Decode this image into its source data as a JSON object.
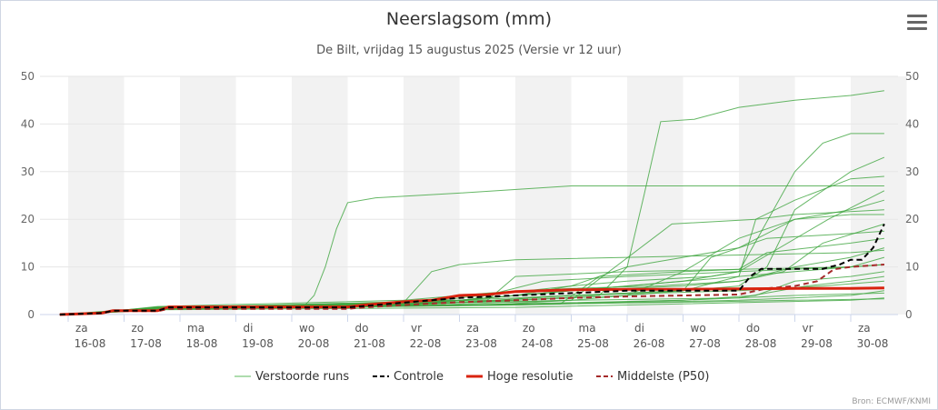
{
  "chart_data": {
    "type": "line",
    "title": "Neerslagsom (mm)",
    "subtitle": "De Bilt, vrijdag 15 augustus 2025 (Versie vr 12 uur)",
    "credit": "Bron: ECMWF/KNMI",
    "ylim": [
      0,
      50
    ],
    "yticks": [
      0,
      10,
      20,
      30,
      40,
      50
    ],
    "grid": true,
    "legend_position": "bottom",
    "x_days": [
      {
        "day": "za",
        "date": "16-08"
      },
      {
        "day": "zo",
        "date": "17-08"
      },
      {
        "day": "ma",
        "date": "18-08"
      },
      {
        "day": "di",
        "date": "19-08"
      },
      {
        "day": "wo",
        "date": "20-08"
      },
      {
        "day": "do",
        "date": "21-08"
      },
      {
        "day": "vr",
        "date": "22-08"
      },
      {
        "day": "za",
        "date": "23-08"
      },
      {
        "day": "zo",
        "date": "24-08"
      },
      {
        "day": "ma",
        "date": "25-08"
      },
      {
        "day": "di",
        "date": "26-08"
      },
      {
        "day": "wo",
        "date": "27-08"
      },
      {
        "day": "do",
        "date": "28-08"
      },
      {
        "day": "vr",
        "date": "29-08"
      },
      {
        "day": "za",
        "date": "30-08"
      }
    ],
    "x_range_days": [
      -0.15,
      14.7
    ],
    "legend": [
      {
        "name": "Verstoorde runs",
        "color": "#5cb85c",
        "style": "solid-thin"
      },
      {
        "name": "Controle",
        "color": "#000000",
        "style": "dashed"
      },
      {
        "name": "Hoge resolutie",
        "color": "#d9230f",
        "style": "solid-thick"
      },
      {
        "name": "Middelste (P50)",
        "color": "#a52a2a",
        "style": "dashed"
      }
    ],
    "ensemble": [
      {
        "x": [
          -0.2,
          0.8,
          1.6,
          4.2,
          4.4,
          4.6,
          4.8,
          5.0,
          5.5,
          7,
          9,
          11,
          14.6
        ],
        "y": [
          0,
          0.8,
          1.5,
          1.5,
          4,
          10,
          18,
          23.5,
          24.5,
          25.5,
          27,
          27,
          27
        ]
      },
      {
        "x": [
          -0.2,
          0.8,
          1.6,
          6,
          7,
          9,
          10,
          10.3,
          10.6,
          11.2,
          12,
          13,
          14,
          14.6
        ],
        "y": [
          0,
          0.7,
          1.6,
          2,
          3.5,
          6,
          10,
          25,
          40.5,
          41,
          43.5,
          45,
          46,
          47
        ]
      },
      {
        "x": [
          -0.2,
          0.8,
          1.6,
          6,
          7,
          9,
          11,
          12,
          13,
          13.5,
          14,
          14.6
        ],
        "y": [
          0,
          0.7,
          1.2,
          1.8,
          3,
          5,
          7,
          9,
          30,
          36,
          38,
          38
        ]
      },
      {
        "x": [
          -0.2,
          0.8,
          1.6,
          6,
          7,
          9,
          11,
          12,
          12.5,
          13,
          14,
          14.6
        ],
        "y": [
          0,
          0.6,
          1.4,
          2.2,
          3,
          4,
          5,
          6,
          10,
          22,
          30,
          33
        ]
      },
      {
        "x": [
          -0.2,
          0.8,
          1.6,
          6,
          8,
          10,
          11,
          12,
          12.3,
          13,
          14,
          14.6
        ],
        "y": [
          0,
          0.6,
          1.3,
          2,
          3,
          4,
          5,
          8,
          20,
          24,
          28.5,
          29
        ]
      },
      {
        "x": [
          -0.2,
          0.8,
          1.6,
          6,
          9,
          10,
          11,
          12,
          13,
          14,
          14.6
        ],
        "y": [
          0,
          0.6,
          1.2,
          1.8,
          3,
          4,
          9,
          16,
          20,
          22,
          24
        ]
      },
      {
        "x": [
          -0.2,
          0.8,
          1.6,
          6,
          6.5,
          7,
          8,
          10,
          12,
          14,
          14.6
        ],
        "y": [
          0,
          0.6,
          1.5,
          2.5,
          9,
          10.5,
          11.5,
          12,
          12.5,
          13,
          13.5
        ]
      },
      {
        "x": [
          -0.2,
          0.8,
          1.6,
          6,
          8,
          9.5,
          10,
          11,
          12,
          12.5,
          14,
          14.6
        ],
        "y": [
          0,
          0.6,
          1.3,
          2,
          3,
          4,
          10,
          12,
          14,
          16,
          17,
          17.5
        ]
      },
      {
        "x": [
          -0.2,
          0.8,
          1.6,
          7,
          9,
          11,
          12,
          12.8,
          13.5,
          14.6
        ],
        "y": [
          0,
          0.6,
          1.4,
          3,
          5,
          6,
          7,
          9,
          15,
          19
        ]
      },
      {
        "x": [
          -0.2,
          0.8,
          1.6,
          7.5,
          8,
          10,
          12,
          14,
          14.6
        ],
        "y": [
          0,
          0.6,
          1.3,
          3,
          8,
          9,
          9.5,
          10,
          10.5
        ]
      },
      {
        "x": [
          -0.2,
          0.8,
          1.6,
          6,
          8,
          9,
          10,
          11.5,
          12,
          14,
          14.6
        ],
        "y": [
          0,
          0.6,
          1.4,
          2,
          4,
          6,
          7,
          8,
          9,
          10,
          12
        ]
      },
      {
        "x": [
          -0.2,
          0.8,
          1.6,
          6,
          9,
          11,
          12.3,
          13,
          14,
          14.6
        ],
        "y": [
          0,
          0.6,
          1.2,
          1.8,
          2.5,
          3,
          4,
          7,
          8,
          9
        ]
      },
      {
        "x": [
          -0.2,
          0.8,
          1.6,
          7,
          9,
          12,
          13.2,
          14,
          14.6
        ],
        "y": [
          0,
          0.6,
          1.3,
          2.5,
          3,
          3.5,
          6,
          7,
          8
        ]
      },
      {
        "x": [
          -0.2,
          0.8,
          1.6,
          8,
          10,
          12,
          14,
          14.6
        ],
        "y": [
          0,
          0.5,
          1.1,
          2,
          2.5,
          3,
          4,
          5
        ]
      },
      {
        "x": [
          -0.2,
          0.8,
          1.6,
          8,
          10,
          12,
          14,
          14.6
        ],
        "y": [
          0,
          0.5,
          1.0,
          1.5,
          2,
          2.5,
          3,
          3.5
        ]
      },
      {
        "x": [
          -0.2,
          0.8,
          1.6,
          6,
          7.5,
          9,
          10.5,
          12,
          13,
          14,
          14.6
        ],
        "y": [
          0,
          0.7,
          1.7,
          3,
          4.5,
          5.5,
          6,
          7,
          10,
          12,
          14
        ]
      },
      {
        "x": [
          -0.2,
          0.8,
          1.6,
          6,
          8.8,
          9.5,
          11,
          12,
          12.5,
          14,
          14.6
        ],
        "y": [
          0,
          0.6,
          1.2,
          1.8,
          2.2,
          8,
          9,
          9.5,
          13,
          15,
          16
        ]
      },
      {
        "x": [
          -0.2,
          0.8,
          1.6,
          5,
          7,
          9,
          11,
          13,
          14.6
        ],
        "y": [
          0,
          0.6,
          1.1,
          1.5,
          2,
          2.3,
          2.6,
          3,
          3.3
        ]
      },
      {
        "x": [
          -0.2,
          0.8,
          1.6,
          7,
          10,
          12,
          13,
          14,
          14.6
        ],
        "y": [
          0,
          0.6,
          1.2,
          3,
          6,
          8,
          9,
          10,
          10.5
        ]
      },
      {
        "x": [
          -0.2,
          0.8,
          1.6,
          6.5,
          9,
          11,
          11.5,
          12,
          13,
          14,
          14.6
        ],
        "y": [
          0,
          0.6,
          1.3,
          2.2,
          4,
          5,
          12,
          14,
          20,
          21,
          21
        ]
      },
      {
        "x": [
          -0.2,
          0.8,
          1.6,
          7,
          9,
          12,
          13.5,
          14.6
        ],
        "y": [
          0,
          0.6,
          1.4,
          2.5,
          4,
          5,
          6,
          7
        ]
      },
      {
        "x": [
          -0.2,
          0.8,
          1.6,
          8,
          11,
          13,
          14.6
        ],
        "y": [
          0,
          0.5,
          1.2,
          2,
          3,
          4,
          4.5
        ]
      },
      {
        "x": [
          -0.2,
          0.8,
          1.6,
          7,
          8.5,
          10,
          12,
          13.6,
          14.6
        ],
        "y": [
          0,
          0.6,
          1.3,
          2.6,
          7,
          8,
          9,
          20,
          26
        ]
      },
      {
        "x": [
          -0.2,
          0.8,
          1.6,
          7.5,
          9,
          10.8,
          12.3,
          13,
          14.6
        ],
        "y": [
          0,
          0.6,
          1.3,
          2,
          3,
          19,
          20,
          21,
          22
        ]
      }
    ],
    "controle": {
      "x": [
        -0.2,
        0.6,
        0.8,
        1.6,
        1.8,
        5,
        5.3,
        6,
        6.5,
        7,
        8,
        9,
        10,
        11,
        12,
        12.2,
        12.4,
        13,
        13.5,
        13.8,
        14,
        14.2,
        14.4,
        14.6
      ],
      "y": [
        0,
        0.3,
        0.8,
        0.8,
        1.5,
        1.5,
        1.8,
        2.5,
        3,
        3.5,
        4,
        4.5,
        5,
        5,
        5,
        8,
        9.6,
        9.6,
        9.6,
        10.5,
        11.5,
        11.5,
        14,
        19
      ]
    },
    "hoge_resolutie": {
      "x": [
        -0.2,
        0.6,
        0.8,
        1.6,
        1.8,
        5,
        5.3,
        6,
        6.5,
        7,
        7.5,
        8,
        9,
        10,
        11,
        12,
        13,
        14,
        14.6
      ],
      "y": [
        0,
        0.3,
        0.8,
        0.8,
        1.6,
        1.6,
        2,
        2.7,
        3,
        4,
        4.2,
        4.8,
        5.2,
        5.3,
        5.3,
        5.4,
        5.5,
        5.5,
        5.6
      ]
    },
    "middelste": {
      "x": [
        -0.2,
        0.6,
        0.8,
        1.6,
        1.8,
        5,
        5.3,
        6,
        6.5,
        7,
        8,
        9,
        10,
        11,
        12,
        12.5,
        13,
        13.4,
        13.7,
        14,
        14.6
      ],
      "y": [
        0,
        0.3,
        0.7,
        0.7,
        1.2,
        1.2,
        1.5,
        2,
        2.3,
        2.6,
        3,
        3.5,
        3.8,
        4,
        4.2,
        5.5,
        6,
        7,
        9.5,
        10,
        10.5
      ]
    }
  }
}
